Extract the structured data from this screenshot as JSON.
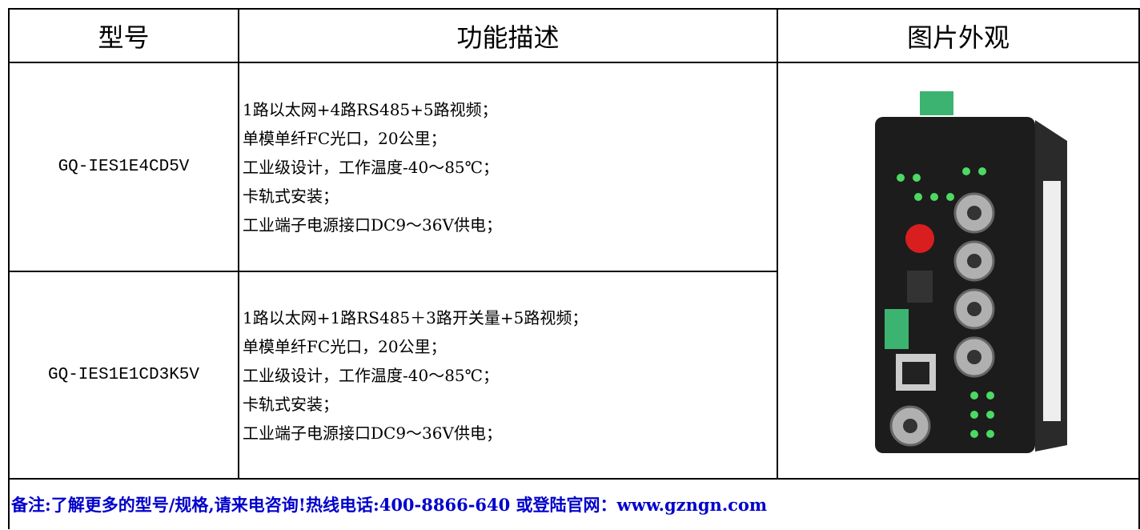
{
  "table": {
    "header": [
      "型号",
      "功能描述",
      "图片外观"
    ],
    "rows": [
      {
        "model": "GQ-IES1E4CD5V",
        "description": [
          "1路以太网+4路RS485+5路视频；",
          "单模单纤FC光口，20公里；",
          "工业级设计，工作温度-40～85℃；",
          "卡轨式安装；",
          "工业端子电源接口DC9～36V供电；"
        ]
      },
      {
        "model": "GQ-IES1E1CD3K5V",
        "description": [
          "1路以太网+1路RS485＋3路开关量+5路视频；",
          "单模单纤FC光口，20公里；",
          "工业级设计，工作温度-40～85℃；",
          "卡轨式安装；",
          "工业端子电源接口DC9～36V供电；"
        ]
      }
    ],
    "note": "备注:了解更多的型号/规格,请来电咨询!热线电话:400-8866-640 或登陆官网：www.gzngn.com"
  }
}
